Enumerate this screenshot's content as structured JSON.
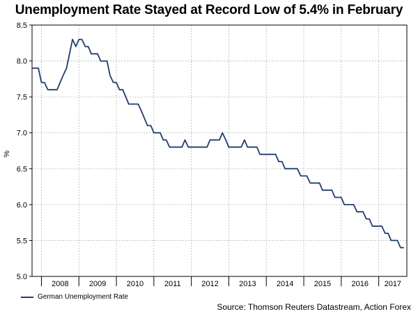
{
  "title": "Unemployment Rate Stayed at Record Low of 5.4% in February",
  "legend_label": "German Unemployment Rate",
  "source": "Source: Thomson Reuters Datastream, Action Forex",
  "colors": {
    "line": "#1f3d6b",
    "grid": "#b5b5b5",
    "axis": "#000000"
  },
  "chart_data": {
    "type": "line",
    "title": "Unemployment Rate Stayed at Record Low of 5.4% in February",
    "ylabel": "%",
    "xlabel": "",
    "ylim": [
      5.0,
      8.5
    ],
    "yticks": [
      5.0,
      5.5,
      6.0,
      6.5,
      7.0,
      7.5,
      8.0,
      8.5
    ],
    "ytick_labels": [
      "5.0",
      "5.5",
      "6.0",
      "6.5",
      "7.0",
      "7.5",
      "8.0",
      "8.5"
    ],
    "xlim": [
      2007.75,
      2017.75
    ],
    "year_labels": [
      "2008",
      "2009",
      "2010",
      "2011",
      "2012",
      "2013",
      "2014",
      "2015",
      "2016",
      "2017"
    ],
    "grid": true,
    "legend": "bottom-left",
    "series": [
      {
        "name": "German Unemployment Rate",
        "x": [
          2007.75,
          2007.83,
          2007.92,
          2008.0,
          2008.08,
          2008.17,
          2008.25,
          2008.33,
          2008.42,
          2008.5,
          2008.58,
          2008.67,
          2008.75,
          2008.83,
          2008.92,
          2009.0,
          2009.08,
          2009.17,
          2009.25,
          2009.33,
          2009.42,
          2009.5,
          2009.58,
          2009.67,
          2009.75,
          2009.83,
          2009.92,
          2010.0,
          2010.08,
          2010.17,
          2010.25,
          2010.33,
          2010.42,
          2010.5,
          2010.58,
          2010.67,
          2010.75,
          2010.83,
          2010.92,
          2011.0,
          2011.08,
          2011.17,
          2011.25,
          2011.33,
          2011.42,
          2011.5,
          2011.58,
          2011.67,
          2011.75,
          2011.83,
          2011.92,
          2012.0,
          2012.08,
          2012.17,
          2012.25,
          2012.33,
          2012.42,
          2012.5,
          2012.58,
          2012.67,
          2012.75,
          2012.83,
          2012.92,
          2013.0,
          2013.08,
          2013.17,
          2013.25,
          2013.33,
          2013.42,
          2013.5,
          2013.58,
          2013.67,
          2013.75,
          2013.83,
          2013.92,
          2014.0,
          2014.08,
          2014.17,
          2014.25,
          2014.33,
          2014.42,
          2014.5,
          2014.58,
          2014.67,
          2014.75,
          2014.83,
          2014.92,
          2015.0,
          2015.08,
          2015.17,
          2015.25,
          2015.33,
          2015.42,
          2015.5,
          2015.58,
          2015.67,
          2015.75,
          2015.83,
          2015.92,
          2016.0,
          2016.08,
          2016.17,
          2016.25,
          2016.33,
          2016.42,
          2016.5,
          2016.58,
          2016.67,
          2016.75,
          2016.83,
          2016.92,
          2017.0,
          2017.08,
          2017.17,
          2017.25,
          2017.33,
          2017.42,
          2017.5,
          2017.58,
          2017.67
        ],
        "values": [
          7.9,
          7.9,
          7.9,
          7.7,
          7.7,
          7.6,
          7.6,
          7.6,
          7.6,
          7.7,
          7.8,
          7.9,
          8.1,
          8.3,
          8.2,
          8.3,
          8.3,
          8.2,
          8.2,
          8.1,
          8.1,
          8.1,
          8.0,
          8.0,
          8.0,
          7.8,
          7.7,
          7.7,
          7.6,
          7.6,
          7.5,
          7.4,
          7.4,
          7.4,
          7.4,
          7.3,
          7.2,
          7.1,
          7.1,
          7.0,
          7.0,
          7.0,
          6.9,
          6.9,
          6.8,
          6.8,
          6.8,
          6.8,
          6.8,
          6.9,
          6.8,
          6.8,
          6.8,
          6.8,
          6.8,
          6.8,
          6.8,
          6.9,
          6.9,
          6.9,
          6.9,
          7.0,
          6.9,
          6.8,
          6.8,
          6.8,
          6.8,
          6.8,
          6.9,
          6.8,
          6.8,
          6.8,
          6.8,
          6.7,
          6.7,
          6.7,
          6.7,
          6.7,
          6.7,
          6.6,
          6.6,
          6.5,
          6.5,
          6.5,
          6.5,
          6.5,
          6.4,
          6.4,
          6.4,
          6.3,
          6.3,
          6.3,
          6.3,
          6.2,
          6.2,
          6.2,
          6.2,
          6.1,
          6.1,
          6.1,
          6.0,
          6.0,
          6.0,
          6.0,
          5.9,
          5.9,
          5.9,
          5.8,
          5.8,
          5.7,
          5.7,
          5.7,
          5.7,
          5.6,
          5.6,
          5.5,
          5.5,
          5.5,
          5.4,
          5.4
        ]
      }
    ]
  }
}
